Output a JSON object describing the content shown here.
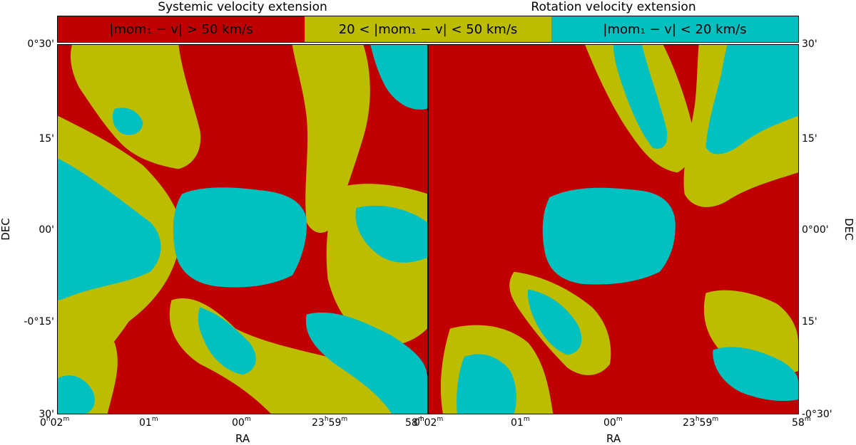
{
  "chart_data": [
    {
      "type": "heatmap",
      "title": "Systemic velocity extension",
      "xlabel": "RA",
      "ylabel": "DEC",
      "x_ticks": [
        "0h02m",
        "01m",
        "00m",
        "23h59m",
        "58m"
      ],
      "y_ticks": [
        "0°30'",
        "15'",
        "00'",
        "-0°15'",
        "30'"
      ],
      "categories": [
        "|mom1 − v| > 50 km/s",
        "20 < |mom1 − v| < 50 km/s",
        "|mom1 − v| < 20 km/s"
      ]
    },
    {
      "type": "heatmap",
      "title": "Rotation velocity extension",
      "xlabel": "RA",
      "ylabel": "DEC",
      "x_ticks": [
        "0h02m",
        "01m",
        "00m",
        "23h59m",
        "58m"
      ],
      "y_ticks": [
        "30'",
        "15'",
        "0°00'",
        "15'",
        "-0°30'"
      ],
      "categories": [
        "|mom1 − v| > 50 km/s",
        "20 < |mom1 − v| < 50 km/s",
        "|mom1 − v| < 20 km/s"
      ]
    }
  ],
  "legend": {
    "items": [
      {
        "label": "|mom₁ − v| > 50 km/s",
        "color": "#c00000"
      },
      {
        "label": "20 < |mom₁ − v| < 50 km/s",
        "color": "#bdbd00"
      },
      {
        "label": "|mom₁ − v| < 20 km/s",
        "color": "#00c0c0"
      }
    ]
  },
  "colors": {
    "red": "#c00000",
    "olive": "#bdbd00",
    "cyan": "#00c0c0"
  }
}
